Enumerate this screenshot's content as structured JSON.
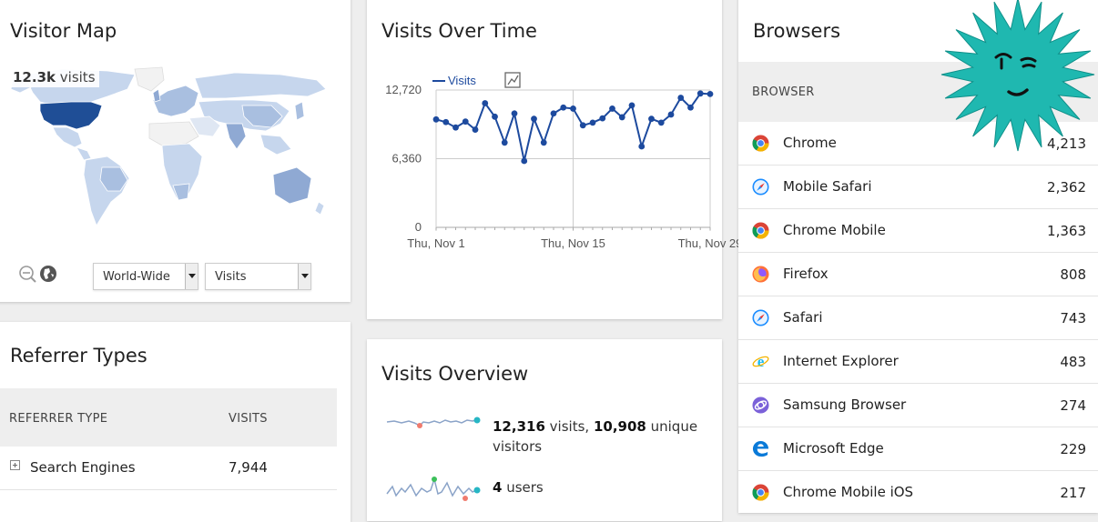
{
  "visitor_map": {
    "title": "Visitor Map",
    "tooltip_value": "12.3k",
    "tooltip_unit": "visits",
    "region_select": "World-Wide",
    "metric_select": "Visits",
    "zoom_out_icon": "zoom-out-icon",
    "globe_icon": "globe-icon",
    "colors": {
      "low": "#c6d6ed",
      "mid": "#8fa9d3",
      "high": "#1f4e96",
      "none": "#f2f2f2"
    }
  },
  "visits_over_time": {
    "title": "Visits Over Time",
    "legend_label": "Visits",
    "chart_icon": "chart-type-icon",
    "chart_data": {
      "type": "line",
      "x_ticks": [
        "Thu, Nov 1",
        "Thu, Nov 15",
        "Thu, Nov 29"
      ],
      "y_ticks": [
        "0",
        "6,360",
        "12,720"
      ],
      "ylim": [
        0,
        12720
      ],
      "grid": true,
      "series": [
        {
          "name": "Visits",
          "color": "#1d4a9e",
          "values": [
            10000,
            9750,
            9250,
            9800,
            9050,
            11500,
            10250,
            7850,
            10550,
            6150,
            10050,
            7850,
            10550,
            11100,
            11000,
            9450,
            9700,
            10100,
            11000,
            10200,
            11300,
            7500,
            10050,
            9700,
            10450,
            12000,
            11100,
            12400,
            12350
          ]
        }
      ]
    }
  },
  "browsers": {
    "title": "Browsers",
    "column_header": "BROWSER",
    "rows": [
      {
        "icon": "chrome-icon",
        "label": "Chrome",
        "value": "4,213"
      },
      {
        "icon": "mobile-safari-icon",
        "label": "Mobile Safari",
        "value": "2,362"
      },
      {
        "icon": "chrome-mobile-icon",
        "label": "Chrome Mobile",
        "value": "1,363"
      },
      {
        "icon": "firefox-icon",
        "label": "Firefox",
        "value": "808"
      },
      {
        "icon": "safari-icon",
        "label": "Safari",
        "value": "743"
      },
      {
        "icon": "internet-explorer-icon",
        "label": "Internet Explorer",
        "value": "483"
      },
      {
        "icon": "samsung-browser-icon",
        "label": "Samsung Browser",
        "value": "274"
      },
      {
        "icon": "microsoft-edge-icon",
        "label": "Microsoft Edge",
        "value": "229"
      },
      {
        "icon": "chrome-mobile-ios-icon",
        "label": "Chrome Mobile iOS",
        "value": "217"
      }
    ]
  },
  "referrer_types": {
    "title": "Referrer Types",
    "col_type": "REFERRER TYPE",
    "col_visits": "VISITS",
    "rows": [
      {
        "label": "Search Engines",
        "value": "7,944"
      }
    ]
  },
  "visits_overview": {
    "title": "Visits Overview",
    "visits": "12,316",
    "visits_text": "visits,",
    "unique": "10,908",
    "unique_text": "unique visitors",
    "users": "4",
    "users_text": "users"
  },
  "accent_color": "#1d4a9e",
  "mascot_color": "#1fb8b0"
}
